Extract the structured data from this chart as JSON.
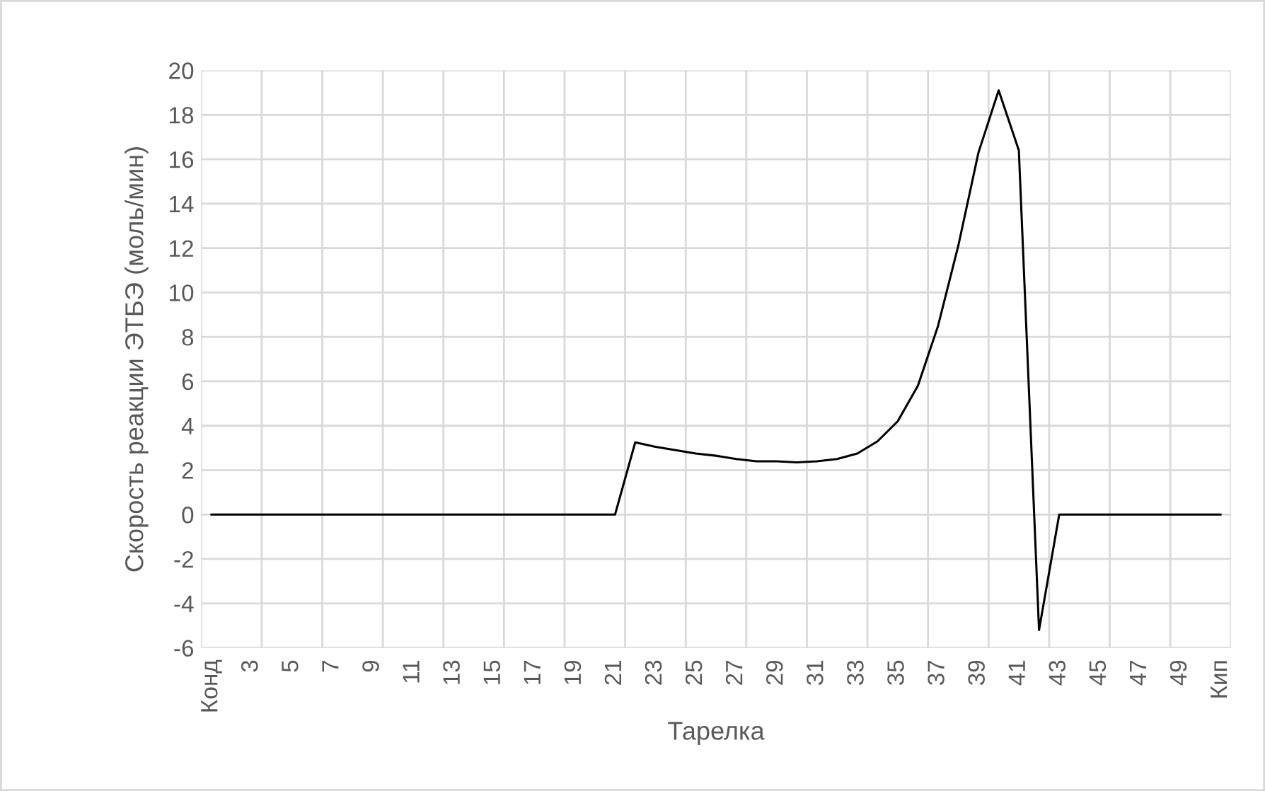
{
  "chart_data": {
    "type": "line",
    "xlabel": "Тарелка",
    "ylabel": "Скорость реакции ЭТБЭ (моль/мин)",
    "categories": [
      "Конд",
      null,
      "3",
      null,
      "5",
      null,
      "7",
      null,
      "9",
      null,
      "11",
      null,
      "13",
      null,
      "15",
      null,
      "17",
      null,
      "19",
      null,
      "21",
      null,
      "23",
      null,
      "25",
      null,
      "27",
      null,
      "29",
      null,
      "31",
      null,
      "33",
      null,
      "35",
      null,
      "37",
      null,
      "39",
      null,
      "41",
      null,
      "43",
      null,
      "45",
      null,
      "47",
      null,
      "49",
      null,
      "Кип"
    ],
    "series": [
      {
        "color": "#000000",
        "values": [
          0,
          0,
          0,
          0,
          0,
          0,
          0,
          0,
          0,
          0,
          0,
          0,
          0,
          0,
          0,
          0,
          0,
          0,
          0,
          0,
          0,
          3.25,
          3.05,
          2.9,
          2.75,
          2.65,
          2.5,
          2.4,
          2.4,
          2.35,
          2.4,
          2.5,
          2.75,
          3.3,
          4.2,
          5.8,
          8.5,
          12.1,
          16.3,
          19.1,
          16.4,
          -5.2,
          0,
          0,
          0,
          0,
          0,
          0,
          0,
          0,
          0
        ]
      }
    ],
    "ylim": [
      -6,
      20
    ],
    "yticks": [
      -6,
      -4,
      -2,
      0,
      2,
      4,
      6,
      8,
      10,
      12,
      14,
      16,
      18,
      20
    ],
    "grid": true,
    "marker": "none",
    "line_style": "solid"
  }
}
